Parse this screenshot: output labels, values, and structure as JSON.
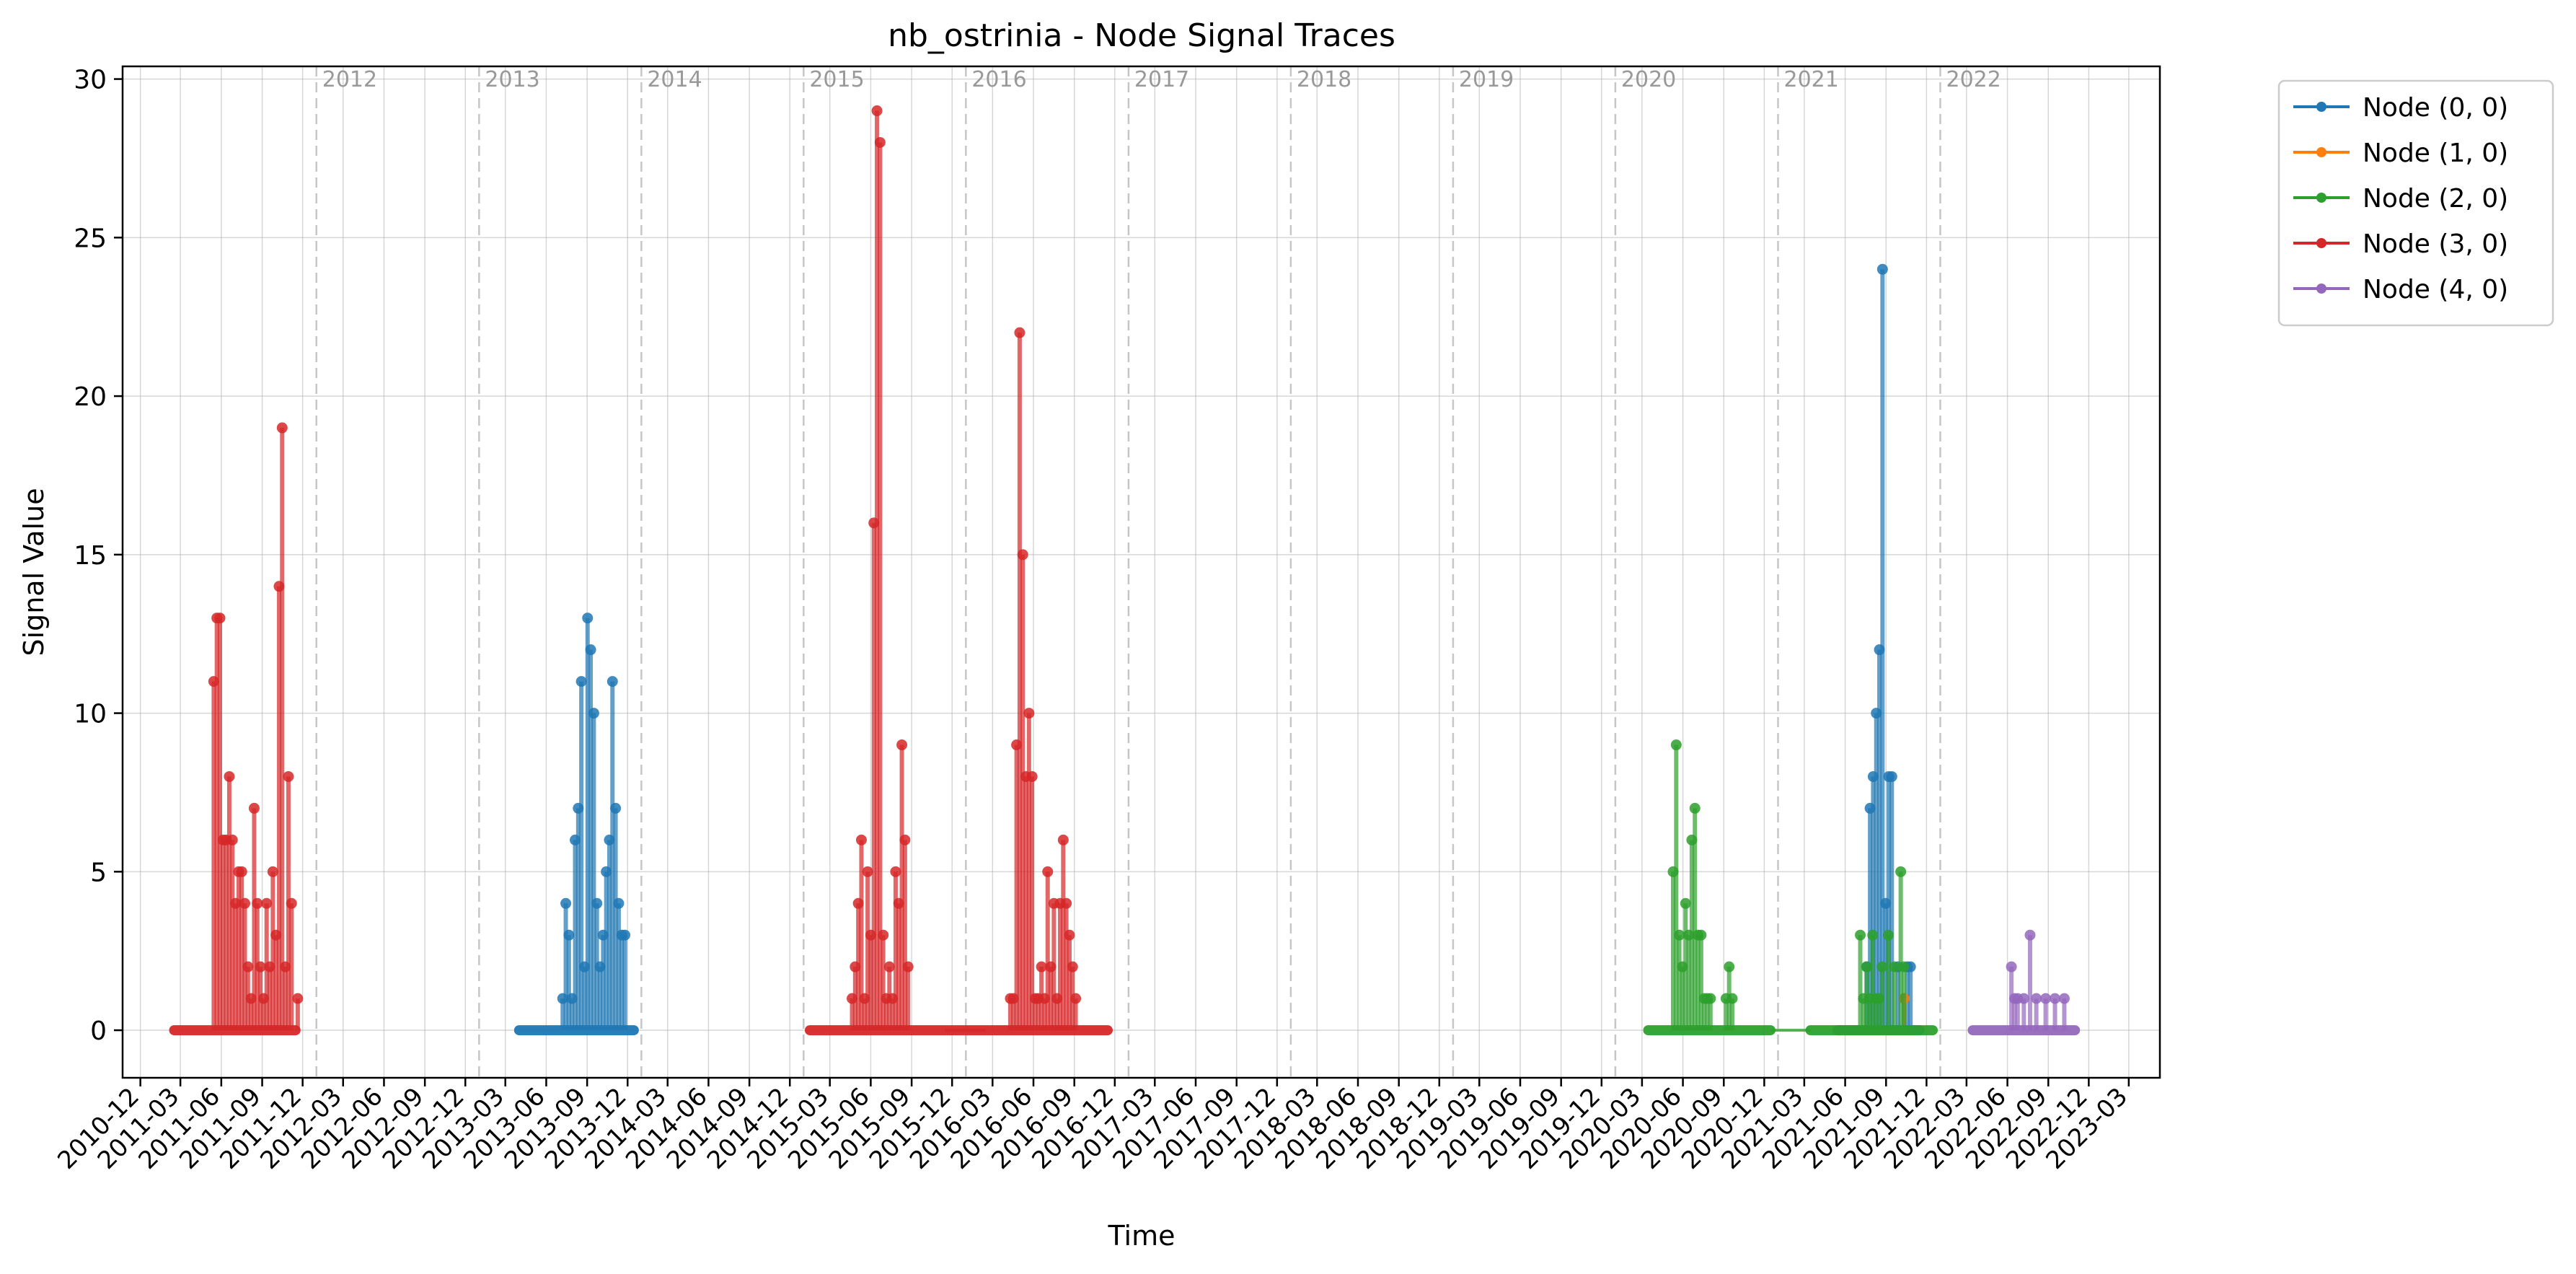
{
  "chart_data": {
    "type": "line",
    "title": "nb_ostrinia - Node Signal Traces",
    "xlabel": "Time",
    "ylabel": "Signal Value",
    "ylim": [
      -1.5,
      30.4
    ],
    "xlim": [
      "2010-10-22",
      "2023-05-10"
    ],
    "y_ticks": [
      0,
      5,
      10,
      15,
      20,
      25,
      30
    ],
    "x_tick_labels": [
      "2010-12",
      "2011-03",
      "2011-06",
      "2011-09",
      "2011-12",
      "2012-03",
      "2012-06",
      "2012-09",
      "2012-12",
      "2013-03",
      "2013-06",
      "2013-09",
      "2013-12",
      "2014-03",
      "2014-06",
      "2014-09",
      "2014-12",
      "2015-03",
      "2015-06",
      "2015-09",
      "2015-12",
      "2016-03",
      "2016-06",
      "2016-09",
      "2016-12",
      "2017-03",
      "2017-06",
      "2017-09",
      "2017-12",
      "2018-03",
      "2018-06",
      "2018-09",
      "2018-12",
      "2019-03",
      "2019-06",
      "2019-09",
      "2019-12",
      "2020-03",
      "2020-06",
      "2020-09",
      "2020-12",
      "2021-03",
      "2021-06",
      "2021-09",
      "2021-12",
      "2022-03",
      "2022-06",
      "2022-09",
      "2022-12",
      "2023-03"
    ],
    "year_markers": [
      "2012",
      "2013",
      "2014",
      "2015",
      "2016",
      "2017",
      "2018",
      "2019",
      "2020",
      "2021",
      "2022"
    ],
    "grid": true,
    "legend_position": "outside-right",
    "series": [
      {
        "name": "Node (0, 0)",
        "color": "#1f77b4",
        "baseline": [
          [
            "2013-04-01",
            "2013-12-15"
          ],
          [
            "2021-05-15",
            "2021-11-15"
          ]
        ],
        "points": [
          [
            "2013-07-08",
            1
          ],
          [
            "2013-07-15",
            4
          ],
          [
            "2013-07-22",
            3
          ],
          [
            "2013-07-29",
            1
          ],
          [
            "2013-08-05",
            6
          ],
          [
            "2013-08-12",
            7
          ],
          [
            "2013-08-19",
            11
          ],
          [
            "2013-08-26",
            2
          ],
          [
            "2013-09-02",
            13
          ],
          [
            "2013-09-09",
            12
          ],
          [
            "2013-09-16",
            10
          ],
          [
            "2013-09-23",
            4
          ],
          [
            "2013-09-30",
            2
          ],
          [
            "2013-10-07",
            3
          ],
          [
            "2013-10-14",
            5
          ],
          [
            "2013-10-21",
            6
          ],
          [
            "2013-10-28",
            11
          ],
          [
            "2013-11-04",
            7
          ],
          [
            "2013-11-11",
            4
          ],
          [
            "2013-11-18",
            3
          ],
          [
            "2013-11-25",
            3
          ],
          [
            "2021-07-20",
            2
          ],
          [
            "2021-07-27",
            7
          ],
          [
            "2021-08-03",
            8
          ],
          [
            "2021-08-10",
            10
          ],
          [
            "2021-08-17",
            12
          ],
          [
            "2021-08-24",
            24
          ],
          [
            "2021-08-31",
            4
          ],
          [
            "2021-09-07",
            8
          ],
          [
            "2021-09-14",
            8
          ],
          [
            "2021-09-28",
            2
          ],
          [
            "2021-10-12",
            1
          ],
          [
            "2021-10-19",
            2
          ],
          [
            "2021-10-26",
            2
          ]
        ]
      },
      {
        "name": "Node (1, 0)",
        "color": "#ff7f0e",
        "baseline": [],
        "points": [
          [
            "2021-10-12",
            1
          ]
        ]
      },
      {
        "name": "Node (2, 0)",
        "color": "#2ca02c",
        "baseline": [
          [
            "2020-03-15",
            "2020-12-15"
          ],
          [
            "2021-03-15",
            "2021-12-15"
          ]
        ],
        "points": [
          [
            "2020-05-10",
            5
          ],
          [
            "2020-05-17",
            9
          ],
          [
            "2020-05-24",
            3
          ],
          [
            "2020-05-31",
            2
          ],
          [
            "2020-06-07",
            4
          ],
          [
            "2020-06-14",
            3
          ],
          [
            "2020-06-21",
            6
          ],
          [
            "2020-06-28",
            7
          ],
          [
            "2020-07-05",
            3
          ],
          [
            "2020-07-12",
            3
          ],
          [
            "2020-07-19",
            1
          ],
          [
            "2020-07-26",
            1
          ],
          [
            "2020-08-02",
            1
          ],
          [
            "2020-09-06",
            1
          ],
          [
            "2020-09-13",
            2
          ],
          [
            "2020-09-20",
            1
          ],
          [
            "2021-07-05",
            3
          ],
          [
            "2021-07-12",
            1
          ],
          [
            "2021-07-19",
            2
          ],
          [
            "2021-07-26",
            1
          ],
          [
            "2021-08-02",
            3
          ],
          [
            "2021-08-09",
            1
          ],
          [
            "2021-08-16",
            1
          ],
          [
            "2021-08-23",
            2
          ],
          [
            "2021-09-06",
            3
          ],
          [
            "2021-09-20",
            2
          ],
          [
            "2021-10-04",
            5
          ],
          [
            "2021-10-11",
            2
          ]
        ]
      },
      {
        "name": "Node (3, 0)",
        "color": "#d62728",
        "baseline": [
          [
            "2011-02-15",
            "2011-11-15"
          ],
          [
            "2015-01-15",
            "2016-11-15"
          ]
        ],
        "points": [
          [
            "2011-05-15",
            11
          ],
          [
            "2011-05-22",
            13
          ],
          [
            "2011-05-29",
            13
          ],
          [
            "2011-06-05",
            6
          ],
          [
            "2011-06-12",
            6
          ],
          [
            "2011-06-19",
            8
          ],
          [
            "2011-06-26",
            6
          ],
          [
            "2011-07-03",
            4
          ],
          [
            "2011-07-10",
            5
          ],
          [
            "2011-07-17",
            5
          ],
          [
            "2011-07-24",
            4
          ],
          [
            "2011-07-31",
            2
          ],
          [
            "2011-08-07",
            1
          ],
          [
            "2011-08-14",
            7
          ],
          [
            "2011-08-21",
            4
          ],
          [
            "2011-08-28",
            2
          ],
          [
            "2011-09-04",
            1
          ],
          [
            "2011-09-11",
            4
          ],
          [
            "2011-09-18",
            2
          ],
          [
            "2011-09-25",
            5
          ],
          [
            "2011-10-02",
            3
          ],
          [
            "2011-10-09",
            14
          ],
          [
            "2011-10-16",
            19
          ],
          [
            "2011-10-23",
            2
          ],
          [
            "2011-10-30",
            8
          ],
          [
            "2011-11-06",
            4
          ],
          [
            "2011-11-20",
            1
          ],
          [
            "2015-04-20",
            1
          ],
          [
            "2015-04-27",
            2
          ],
          [
            "2015-05-04",
            4
          ],
          [
            "2015-05-11",
            6
          ],
          [
            "2015-05-18",
            1
          ],
          [
            "2015-05-25",
            5
          ],
          [
            "2015-06-01",
            3
          ],
          [
            "2015-06-08",
            16
          ],
          [
            "2015-06-15",
            29
          ],
          [
            "2015-06-22",
            28
          ],
          [
            "2015-06-29",
            3
          ],
          [
            "2015-07-06",
            1
          ],
          [
            "2015-07-13",
            2
          ],
          [
            "2015-07-20",
            1
          ],
          [
            "2015-07-27",
            5
          ],
          [
            "2015-08-03",
            4
          ],
          [
            "2015-08-10",
            9
          ],
          [
            "2015-08-17",
            6
          ],
          [
            "2015-08-24",
            2
          ],
          [
            "2016-04-10",
            1
          ],
          [
            "2016-04-17",
            1
          ],
          [
            "2016-04-24",
            9
          ],
          [
            "2016-05-01",
            22
          ],
          [
            "2016-05-08",
            15
          ],
          [
            "2016-05-15",
            8
          ],
          [
            "2016-05-22",
            10
          ],
          [
            "2016-05-29",
            8
          ],
          [
            "2016-06-05",
            1
          ],
          [
            "2016-06-12",
            1
          ],
          [
            "2016-06-19",
            2
          ],
          [
            "2016-06-26",
            1
          ],
          [
            "2016-07-03",
            5
          ],
          [
            "2016-07-10",
            2
          ],
          [
            "2016-07-17",
            4
          ],
          [
            "2016-07-24",
            1
          ],
          [
            "2016-07-31",
            4
          ],
          [
            "2016-08-07",
            6
          ],
          [
            "2016-08-14",
            4
          ],
          [
            "2016-08-21",
            3
          ],
          [
            "2016-08-28",
            2
          ],
          [
            "2016-09-04",
            1
          ]
        ]
      },
      {
        "name": "Node (4, 0)",
        "color": "#9467bd",
        "baseline": [
          [
            "2022-03-15",
            "2022-10-31"
          ]
        ],
        "points": [
          [
            "2022-06-10",
            2
          ],
          [
            "2022-06-17",
            1
          ],
          [
            "2022-06-24",
            1
          ],
          [
            "2022-07-08",
            1
          ],
          [
            "2022-07-22",
            3
          ],
          [
            "2022-08-05",
            1
          ],
          [
            "2022-08-26",
            1
          ],
          [
            "2022-09-16",
            1
          ],
          [
            "2022-10-07",
            1
          ]
        ]
      }
    ]
  }
}
